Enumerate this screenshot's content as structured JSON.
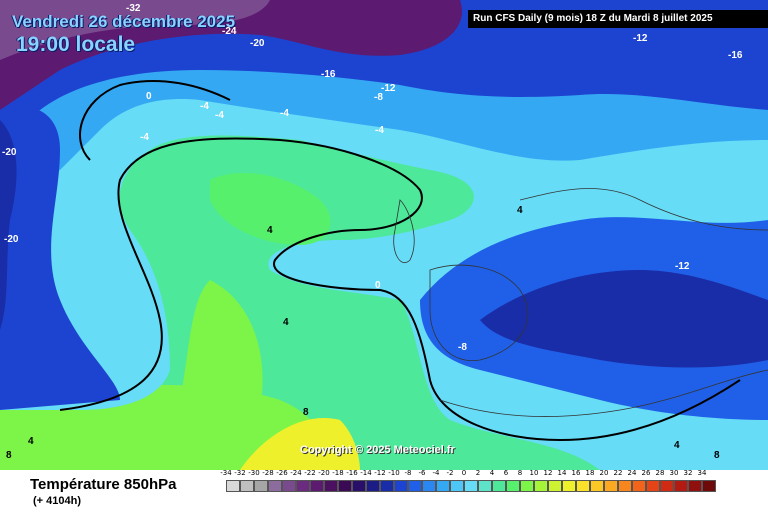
{
  "map": {
    "date_text": "Vendredi 26 décembre 2025",
    "time_text": "19:00 locale",
    "run_text": "Run CFS Daily (9 mois) 18 Z du Mardi 8 juillet 2025",
    "copyright_text": "Copyright © 2025 Meteociel.fr",
    "isotherm_labels": [
      "-32",
      "-24",
      "-20",
      "-16",
      "-12",
      "-8",
      "-12",
      "-16",
      "0",
      "-4",
      "-4",
      "-4",
      "-4",
      "-4",
      "-20",
      "-20",
      "4",
      "4",
      "0",
      "-12",
      "4",
      "-8",
      "8",
      "4",
      "8",
      "4",
      "8"
    ]
  },
  "legend": {
    "parameter_title": "Température 850hPa",
    "lead_time": "(+ 4104h)",
    "scale_values": [
      "-34",
      "-32",
      "-30",
      "-28",
      "-26",
      "-24",
      "-22",
      "-20",
      "-18",
      "-16",
      "-14",
      "-12",
      "-10",
      "-8",
      "-6",
      "-4",
      "-2",
      "0",
      "2",
      "4",
      "6",
      "8",
      "10",
      "12",
      "14",
      "16",
      "18",
      "20",
      "22",
      "24",
      "26",
      "28",
      "30",
      "32",
      "34"
    ],
    "scale_colors": [
      "#d9d9d9",
      "#bfbfbf",
      "#a6a6a6",
      "#8c6c9c",
      "#7a4a8f",
      "#6b2c80",
      "#5c1a70",
      "#4c1060",
      "#3a0a55",
      "#2a0f6a",
      "#1b1c86",
      "#1a2da8",
      "#1d44d0",
      "#2060e8",
      "#2a86f0",
      "#35a8f4",
      "#4ec6f6",
      "#66dcf6",
      "#5ee2c8",
      "#4ee89a",
      "#56f06c",
      "#7df448",
      "#a6f43a",
      "#ccf232",
      "#eef02c",
      "#fbe22a",
      "#fcc826",
      "#fba822",
      "#f8861e",
      "#f2641a",
      "#e54416",
      "#cf2a14",
      "#b21a12",
      "#901010",
      "#6e0a0a"
    ]
  }
}
